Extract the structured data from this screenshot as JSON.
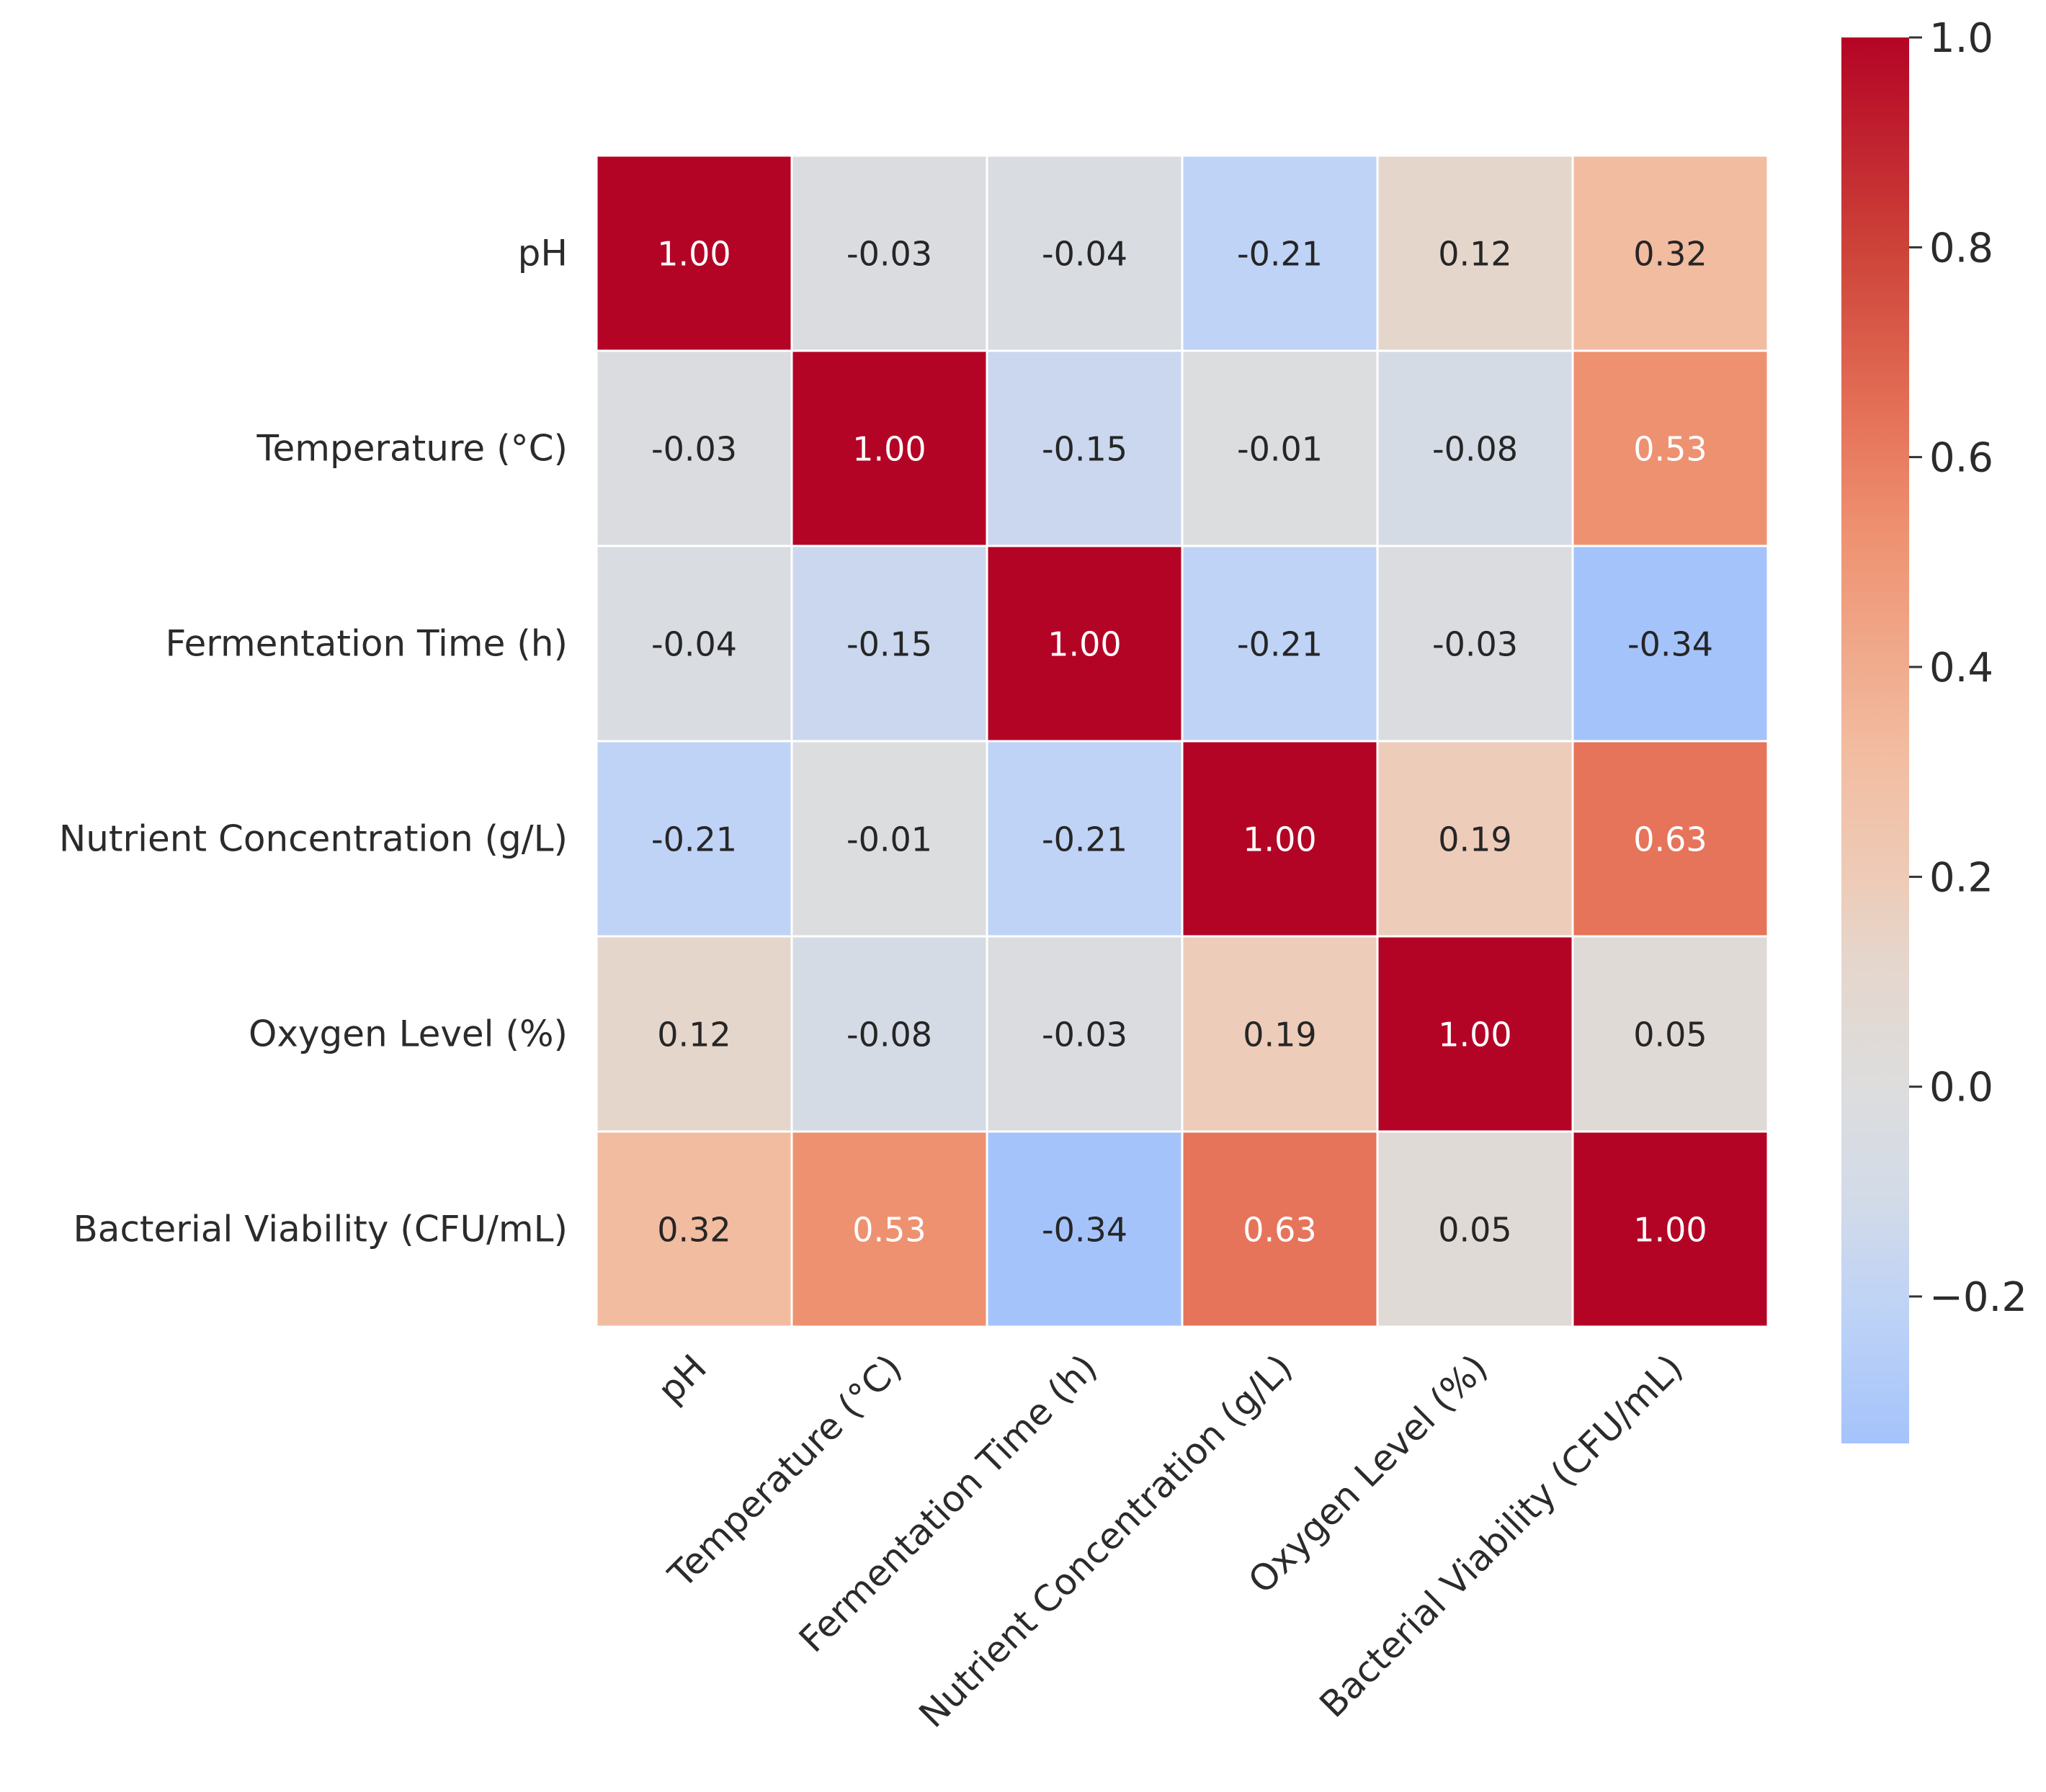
{
  "chart_data": {
    "type": "heatmap",
    "title": "",
    "xlabel": "",
    "ylabel": "",
    "variables": [
      "pH",
      "Temperature (°C)",
      "Fermentation Time (h)",
      "Nutrient Concentration (g/L)",
      "Oxygen Level (%)",
      "Bacterial Viability (CFU/mL)"
    ],
    "values": [
      [
        1.0,
        -0.03,
        -0.04,
        -0.21,
        0.12,
        0.32
      ],
      [
        -0.03,
        1.0,
        -0.15,
        -0.01,
        -0.08,
        0.53
      ],
      [
        -0.04,
        -0.15,
        1.0,
        -0.21,
        -0.03,
        -0.34
      ],
      [
        -0.21,
        -0.01,
        -0.21,
        1.0,
        0.19,
        0.63
      ],
      [
        0.12,
        -0.08,
        -0.03,
        0.19,
        1.0,
        0.05
      ],
      [
        0.32,
        0.53,
        -0.34,
        0.63,
        0.05,
        1.0
      ]
    ],
    "annotation_format": "0.00",
    "colormap": "coolwarm",
    "colorbar": {
      "range": [
        -0.34,
        1.0
      ],
      "ticks": [
        1.0,
        0.8,
        0.6,
        0.4,
        0.2,
        0.0,
        -0.2
      ],
      "tick_labels": [
        "1.0",
        "0.8",
        "0.6",
        "0.4",
        "0.2",
        "0.0",
        "−0.2"
      ]
    },
    "colors": {
      "low": "#a5c3fb",
      "mid": "#dcdddd",
      "high": "#b40426",
      "text_dark": "#262626",
      "text_light": "#ffffff"
    }
  }
}
